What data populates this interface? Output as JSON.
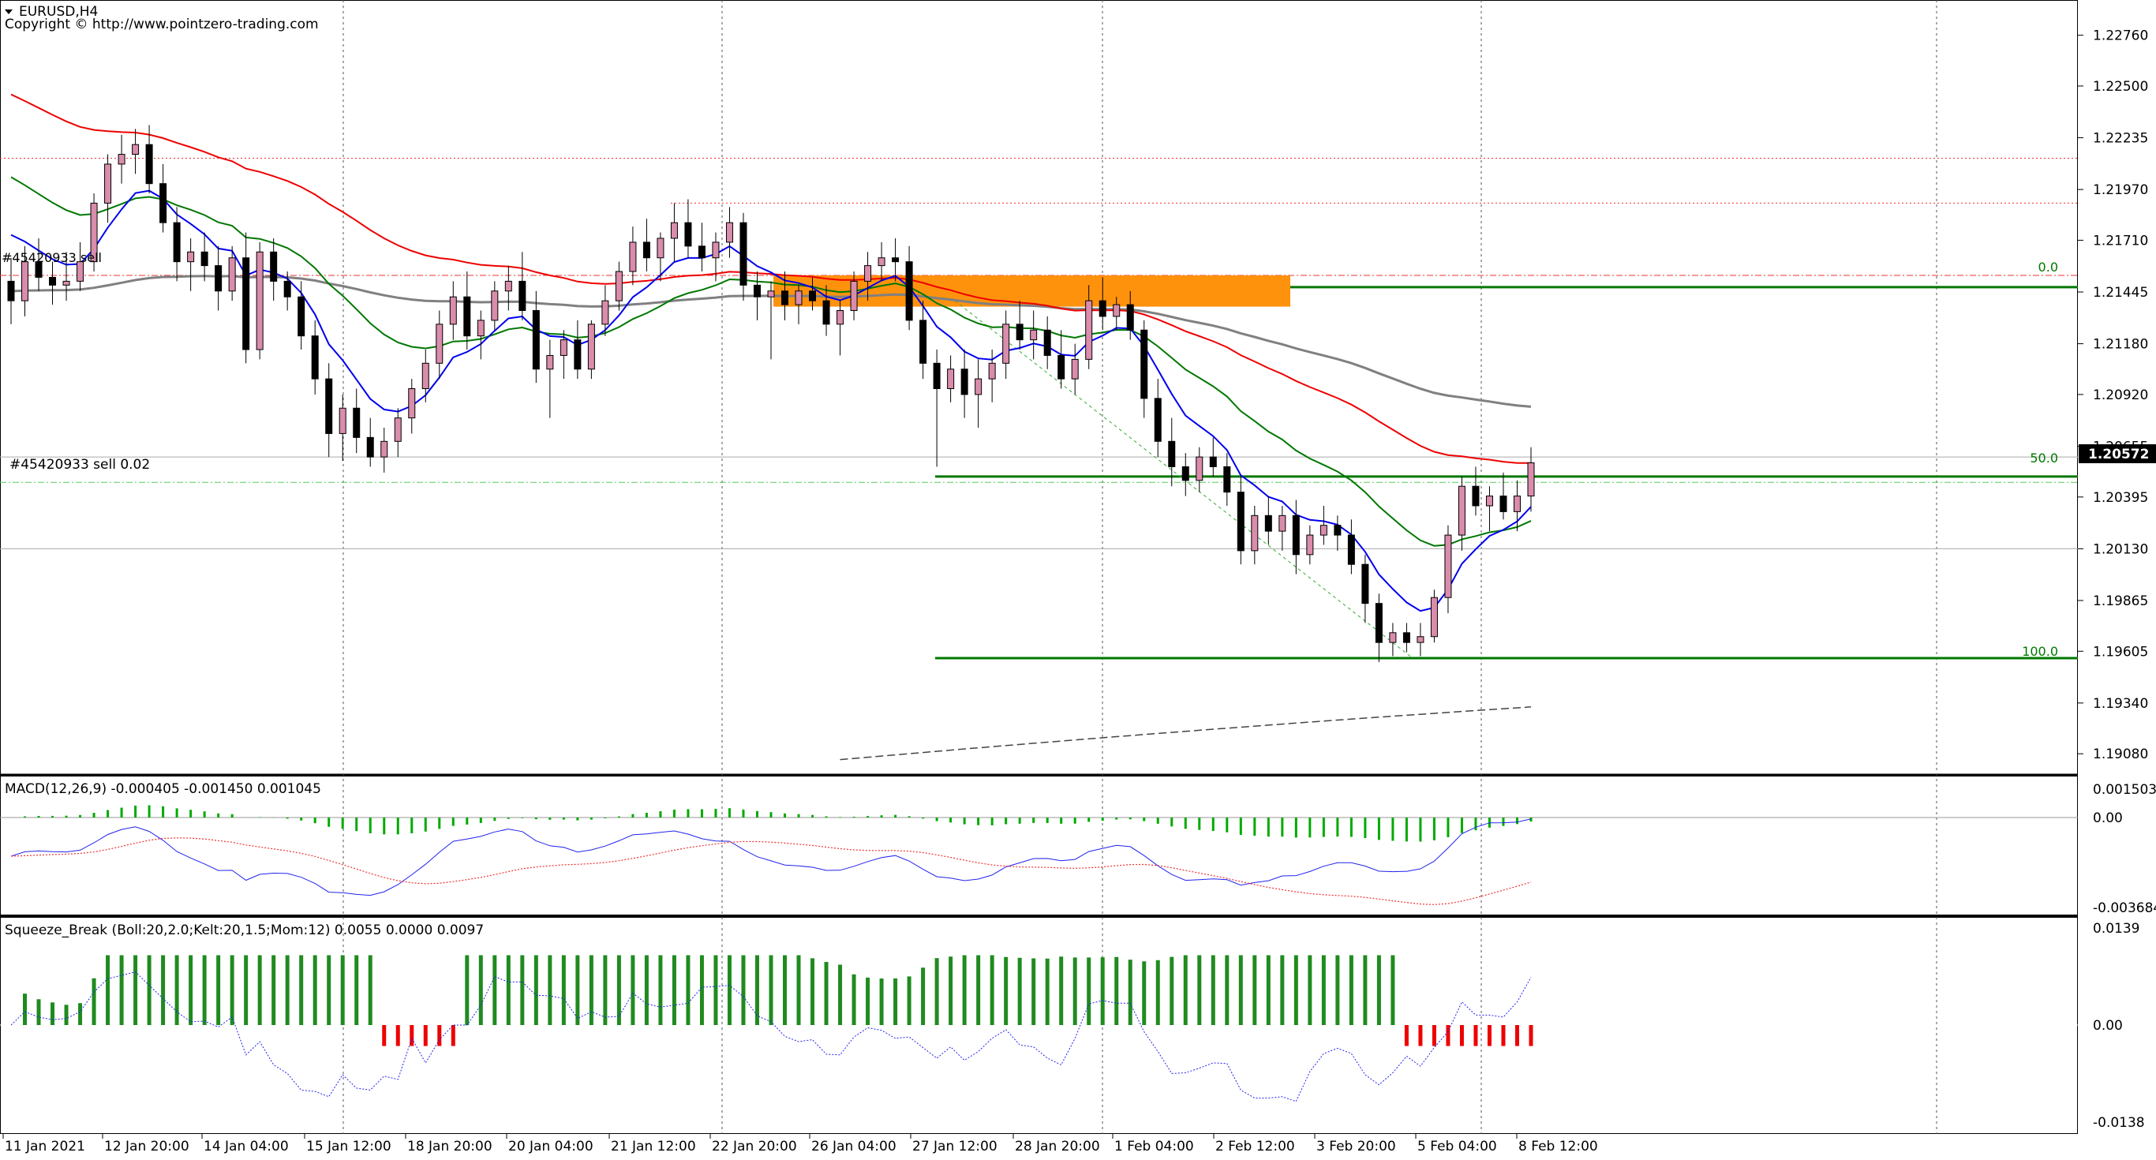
{
  "header": {
    "symbol_title": "EURUSD,H4",
    "copyright": "Copyright © http://www.pointzero-trading.com"
  },
  "colors": {
    "bull_candle": "#d98cab",
    "bear_candle": "#000000",
    "ma_fast": "#0000ee",
    "ma_mid": "#007700",
    "ma_slow": "#ee0000",
    "ma_long": "#808080",
    "supply_zone": "#ff8c00",
    "fib_line": "#007700",
    "macd_hist": "#00aa00",
    "squeeze_pos": "#1f8b1f",
    "squeeze_neg": "#ee0000"
  },
  "main_chart": {
    "price_axis_labels": [
      "1.22760",
      "1.22500",
      "1.22235",
      "1.21970",
      "1.21710",
      "1.21445",
      "1.21180",
      "1.20920",
      "1.20655",
      "1.20395",
      "1.20130",
      "1.19865",
      "1.19605",
      "1.19340",
      "1.19080"
    ],
    "current_price": "1.20572",
    "fib_labels": {
      "top": "0.0",
      "mid": "50.0",
      "bottom": "100.0"
    },
    "order_label": "#45420933 sell 0.02",
    "order_label_small": "#45420933 sell"
  },
  "macd": {
    "label": "MACD(12,26,9) -0.000405 -0.001450 0.001045",
    "axis_labels": [
      "0.001503",
      "0.00",
      "-0.003684"
    ]
  },
  "squeeze": {
    "label": "Squeeze_Break (Boll:20,2.0;Kelt:20,1.5;Mom:12) 0.0055 0.0000 0.0097",
    "axis_labels": [
      "0.0139",
      "0.00",
      "-0.0138"
    ]
  },
  "time_axis_labels": [
    "11 Jan 2021",
    "12 Jan 20:00",
    "14 Jan 04:00",
    "15 Jan 12:00",
    "18 Jan 20:00",
    "20 Jan 04:00",
    "21 Jan 12:00",
    "22 Jan 20:00",
    "26 Jan 04:00",
    "27 Jan 12:00",
    "28 Jan 20:00",
    "1 Feb 04:00",
    "2 Feb 12:00",
    "3 Feb 20:00",
    "5 Feb 04:00",
    "8 Feb 12:00"
  ],
  "chart_data": {
    "type": "candlestick",
    "symbol": "EURUSD",
    "timeframe": "H4",
    "ylim": [
      1.19,
      1.229
    ],
    "candles": [
      [
        1.215,
        1.2162,
        1.2128,
        1.214
      ],
      [
        1.214,
        1.2168,
        1.2132,
        1.216
      ],
      [
        1.216,
        1.2172,
        1.2145,
        1.2152
      ],
      [
        1.2152,
        1.216,
        1.2138,
        1.2148
      ],
      [
        1.2148,
        1.2165,
        1.214,
        1.215
      ],
      [
        1.215,
        1.217,
        1.2145,
        1.216
      ],
      [
        1.216,
        1.2195,
        1.2155,
        1.219
      ],
      [
        1.219,
        1.2215,
        1.218,
        1.221
      ],
      [
        1.221,
        1.2225,
        1.22,
        1.2215
      ],
      [
        1.2215,
        1.2228,
        1.2205,
        1.222
      ],
      [
        1.222,
        1.223,
        1.2195,
        1.22
      ],
      [
        1.22,
        1.221,
        1.2175,
        1.218
      ],
      [
        1.218,
        1.2188,
        1.215,
        1.216
      ],
      [
        1.216,
        1.2172,
        1.2145,
        1.2165
      ],
      [
        1.2165,
        1.2175,
        1.215,
        1.2158
      ],
      [
        1.2158,
        1.2168,
        1.2135,
        1.2145
      ],
      [
        1.2145,
        1.2168,
        1.214,
        1.2162
      ],
      [
        1.2162,
        1.2175,
        1.2108,
        1.2115
      ],
      [
        1.2115,
        1.217,
        1.211,
        1.2165
      ],
      [
        1.2165,
        1.2172,
        1.214,
        1.215
      ],
      [
        1.215,
        1.2155,
        1.2135,
        1.2142
      ],
      [
        1.2142,
        1.215,
        1.2115,
        1.2122
      ],
      [
        1.2122,
        1.213,
        1.2092,
        1.21
      ],
      [
        1.21,
        1.2108,
        1.206,
        1.2072
      ],
      [
        1.2072,
        1.2092,
        1.2058,
        1.2085
      ],
      [
        1.2085,
        1.2095,
        1.2062,
        1.207
      ],
      [
        1.207,
        1.208,
        1.2055,
        1.206
      ],
      [
        1.206,
        1.2075,
        1.2052,
        1.2068
      ],
      [
        1.2068,
        1.2085,
        1.206,
        1.208
      ],
      [
        1.208,
        1.21,
        1.2072,
        1.2095
      ],
      [
        1.2095,
        1.2115,
        1.2088,
        1.2108
      ],
      [
        1.2108,
        1.2135,
        1.21,
        1.2128
      ],
      [
        1.2128,
        1.215,
        1.212,
        1.2142
      ],
      [
        1.2142,
        1.2155,
        1.2115,
        1.2122
      ],
      [
        1.2122,
        1.2135,
        1.211,
        1.213
      ],
      [
        1.213,
        1.215,
        1.2125,
        1.2145
      ],
      [
        1.2145,
        1.2158,
        1.2135,
        1.215
      ],
      [
        1.215,
        1.2165,
        1.213,
        1.2135
      ],
      [
        1.2135,
        1.2145,
        1.2098,
        1.2105
      ],
      [
        1.2105,
        1.212,
        1.208,
        1.2112
      ],
      [
        1.2112,
        1.2125,
        1.21,
        1.212
      ],
      [
        1.212,
        1.213,
        1.21,
        1.2105
      ],
      [
        1.2105,
        1.213,
        1.21,
        1.2128
      ],
      [
        1.2128,
        1.2148,
        1.2122,
        1.214
      ],
      [
        1.214,
        1.216,
        1.2135,
        1.2155
      ],
      [
        1.2155,
        1.2178,
        1.2148,
        1.217
      ],
      [
        1.217,
        1.2182,
        1.2155,
        1.2162
      ],
      [
        1.2162,
        1.2175,
        1.215,
        1.2172
      ],
      [
        1.2172,
        1.219,
        1.216,
        1.218
      ],
      [
        1.218,
        1.2192,
        1.2162,
        1.2168
      ],
      [
        1.2168,
        1.218,
        1.2155,
        1.2162
      ],
      [
        1.2162,
        1.2175,
        1.215,
        1.217
      ],
      [
        1.217,
        1.2188,
        1.2162,
        1.218
      ],
      [
        1.218,
        1.2185,
        1.214,
        1.2148
      ],
      [
        1.2148,
        1.2155,
        1.213,
        1.2142
      ],
      [
        1.2142,
        1.215,
        1.211,
        1.2145
      ],
      [
        1.2145,
        1.2155,
        1.213,
        1.2138
      ],
      [
        1.2138,
        1.2148,
        1.2128,
        1.2145
      ],
      [
        1.2145,
        1.2152,
        1.2135,
        1.214
      ],
      [
        1.214,
        1.2148,
        1.2122,
        1.2128
      ],
      [
        1.2128,
        1.214,
        1.2112,
        1.2135
      ],
      [
        1.2135,
        1.2155,
        1.213,
        1.215
      ],
      [
        1.215,
        1.2165,
        1.214,
        1.2158
      ],
      [
        1.2158,
        1.217,
        1.215,
        1.2162
      ],
      [
        1.2162,
        1.2172,
        1.215,
        1.216
      ],
      [
        1.216,
        1.2168,
        1.2125,
        1.213
      ],
      [
        1.213,
        1.214,
        1.21,
        1.2108
      ],
      [
        1.2108,
        1.2115,
        1.2055,
        1.2095
      ],
      [
        1.2095,
        1.2112,
        1.2088,
        1.2105
      ],
      [
        1.2105,
        1.2115,
        1.208,
        1.2092
      ],
      [
        1.2092,
        1.211,
        1.2075,
        1.21
      ],
      [
        1.21,
        1.2115,
        1.2088,
        1.2108
      ],
      [
        1.2108,
        1.2135,
        1.21,
        1.2128
      ],
      [
        1.2128,
        1.214,
        1.2115,
        1.212
      ],
      [
        1.212,
        1.2135,
        1.211,
        1.2125
      ],
      [
        1.2125,
        1.2132,
        1.2105,
        1.2112
      ],
      [
        1.2112,
        1.2125,
        1.2095,
        1.21
      ],
      [
        1.21,
        1.2118,
        1.2092,
        1.211
      ],
      [
        1.211,
        1.2148,
        1.2105,
        1.214
      ],
      [
        1.214,
        1.2152,
        1.2125,
        1.2132
      ],
      [
        1.2132,
        1.2142,
        1.2125,
        1.2138
      ],
      [
        1.2138,
        1.2145,
        1.212,
        1.2125
      ],
      [
        1.2125,
        1.213,
        1.208,
        1.209
      ],
      [
        1.209,
        1.21,
        1.206,
        1.2068
      ],
      [
        1.2068,
        1.208,
        1.2045,
        1.2055
      ],
      [
        1.2055,
        1.2062,
        1.204,
        1.2048
      ],
      [
        1.2048,
        1.2065,
        1.2042,
        1.206
      ],
      [
        1.206,
        1.207,
        1.205,
        1.2055
      ],
      [
        1.2055,
        1.2062,
        1.2035,
        1.2042
      ],
      [
        1.2042,
        1.205,
        1.2005,
        1.2012
      ],
      [
        1.2012,
        1.2035,
        1.2005,
        1.203
      ],
      [
        1.203,
        1.204,
        1.2015,
        1.2022
      ],
      [
        1.2022,
        1.2035,
        1.2012,
        1.203
      ],
      [
        1.203,
        1.2038,
        1.2,
        1.201
      ],
      [
        1.201,
        1.2025,
        1.2005,
        1.202
      ],
      [
        1.202,
        1.2035,
        1.2015,
        1.2025
      ],
      [
        1.2025,
        1.203,
        1.2012,
        1.202
      ],
      [
        1.202,
        1.2028,
        1.2,
        1.2005
      ],
      [
        1.2005,
        1.201,
        1.1975,
        1.1985
      ],
      [
        1.1985,
        1.199,
        1.1955,
        1.1965
      ],
      [
        1.1965,
        1.1975,
        1.1958,
        1.197
      ],
      [
        1.197,
        1.1975,
        1.196,
        1.1965
      ],
      [
        1.1965,
        1.1975,
        1.1958,
        1.1968
      ],
      [
        1.1968,
        1.1992,
        1.1965,
        1.1988
      ],
      [
        1.1988,
        1.2025,
        1.198,
        1.202
      ],
      [
        1.202,
        1.205,
        1.2012,
        1.2045
      ],
      [
        1.2045,
        1.2055,
        1.203,
        1.2035
      ],
      [
        1.2035,
        1.2045,
        1.2022,
        1.204
      ],
      [
        1.204,
        1.2052,
        1.2028,
        1.2032
      ],
      [
        1.2032,
        1.2048,
        1.2022,
        1.204
      ],
      [
        1.204,
        1.2065,
        1.2032,
        1.2057
      ]
    ]
  }
}
